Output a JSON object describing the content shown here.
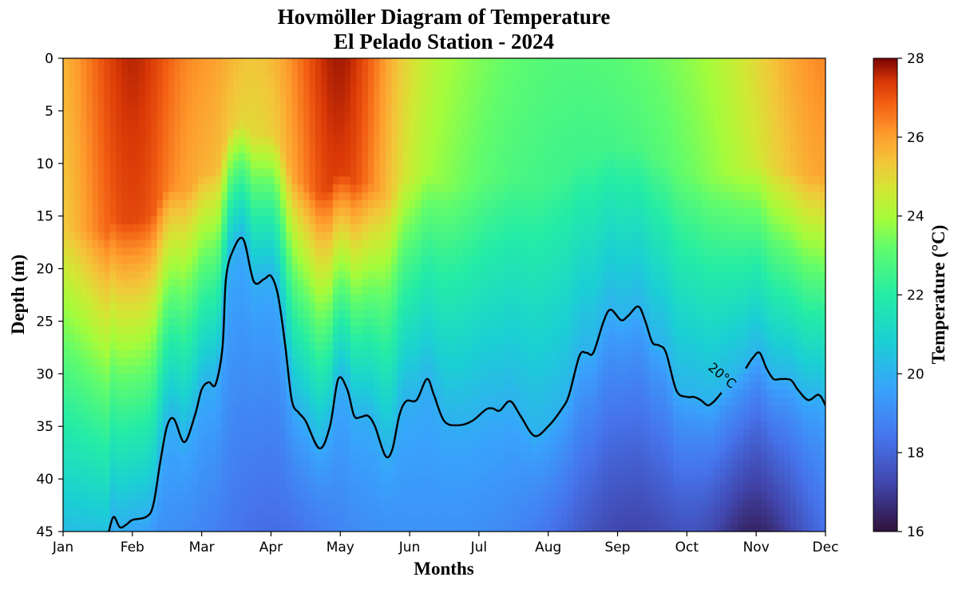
{
  "chart_data": {
    "type": "heatmap",
    "title_lines": [
      "Hovmöller Diagram of Temperature",
      "El Pelado Station - 2024"
    ],
    "xlabel": "Months",
    "ylabel": "Depth (m)",
    "colorbar_label": "Temperature (°C)",
    "colormap": "turbo",
    "x_ticks": [
      "Jan",
      "Feb",
      "Mar",
      "Apr",
      "May",
      "Jun",
      "Jul",
      "Aug",
      "Sep",
      "Oct",
      "Nov",
      "Dec"
    ],
    "y_ticks": [
      0,
      5,
      10,
      15,
      20,
      25,
      30,
      35,
      40,
      45
    ],
    "ylim": [
      45,
      0
    ],
    "y_inverted": true,
    "colorbar_ticks": [
      16,
      18,
      20,
      22,
      24,
      26,
      28
    ],
    "vmin": 16,
    "vmax": 28,
    "contour": {
      "level": 20,
      "label": "20°C",
      "segments": [
        [
          [
            0.66,
            45.0
          ],
          [
            0.73,
            43.6
          ],
          [
            0.82,
            44.6
          ],
          [
            0.92,
            44.3
          ],
          [
            1.0,
            43.9
          ],
          [
            1.2,
            43.6
          ],
          [
            1.3,
            42.5
          ],
          [
            1.4,
            38.5
          ],
          [
            1.5,
            35.0
          ],
          [
            1.6,
            34.3
          ],
          [
            1.75,
            36.5
          ],
          [
            1.9,
            34.0
          ],
          [
            2.0,
            31.5
          ],
          [
            2.1,
            30.8
          ],
          [
            2.2,
            31.0
          ],
          [
            2.3,
            27.5
          ],
          [
            2.35,
            21.0
          ],
          [
            2.45,
            18.3
          ],
          [
            2.6,
            17.2
          ],
          [
            2.75,
            21.2
          ],
          [
            2.9,
            21.0
          ],
          [
            3.0,
            20.7
          ],
          [
            3.1,
            22.5
          ],
          [
            3.2,
            27.0
          ],
          [
            3.3,
            32.5
          ],
          [
            3.4,
            33.7
          ],
          [
            3.5,
            34.5
          ],
          [
            3.7,
            37.1
          ],
          [
            3.85,
            35.0
          ],
          [
            3.97,
            30.5
          ],
          [
            4.1,
            31.5
          ],
          [
            4.2,
            34.0
          ],
          [
            4.3,
            34.1
          ],
          [
            4.4,
            34.0
          ],
          [
            4.5,
            35.0
          ],
          [
            4.65,
            37.8
          ],
          [
            4.75,
            37.2
          ],
          [
            4.85,
            34.0
          ],
          [
            4.95,
            32.6
          ],
          [
            5.1,
            32.5
          ],
          [
            5.25,
            30.5
          ],
          [
            5.35,
            32.0
          ],
          [
            5.5,
            34.5
          ],
          [
            5.7,
            34.9
          ],
          [
            5.9,
            34.5
          ],
          [
            6.1,
            33.4
          ],
          [
            6.2,
            33.3
          ],
          [
            6.3,
            33.5
          ],
          [
            6.45,
            32.6
          ],
          [
            6.6,
            34.0
          ],
          [
            6.8,
            35.9
          ],
          [
            7.0,
            35.0
          ],
          [
            7.2,
            33.3
          ],
          [
            7.3,
            32.0
          ],
          [
            7.45,
            28.3
          ],
          [
            7.55,
            28.0
          ],
          [
            7.65,
            28.0
          ],
          [
            7.8,
            25.0
          ],
          [
            7.9,
            23.9
          ],
          [
            8.05,
            24.9
          ],
          [
            8.15,
            24.5
          ],
          [
            8.3,
            23.6
          ],
          [
            8.4,
            25.0
          ],
          [
            8.5,
            27.0
          ],
          [
            8.6,
            27.3
          ],
          [
            8.7,
            28.0
          ],
          [
            8.85,
            31.6
          ],
          [
            9.0,
            32.2
          ],
          [
            9.1,
            32.2
          ],
          [
            9.2,
            32.5
          ],
          [
            9.3,
            33.0
          ],
          [
            9.38,
            32.7
          ],
          [
            9.45,
            32.2
          ],
          [
            9.5,
            31.8
          ]
        ],
        [
          [
            9.85,
            29.5
          ],
          [
            9.95,
            28.5
          ],
          [
            10.05,
            28.0
          ],
          [
            10.15,
            29.5
          ],
          [
            10.25,
            30.5
          ],
          [
            10.35,
            30.5
          ],
          [
            10.5,
            30.6
          ],
          [
            10.6,
            31.5
          ],
          [
            10.75,
            32.5
          ],
          [
            10.9,
            32.0
          ],
          [
            11.0,
            33.0
          ],
          [
            11.12,
            35.0
          ]
        ]
      ]
    }
  }
}
